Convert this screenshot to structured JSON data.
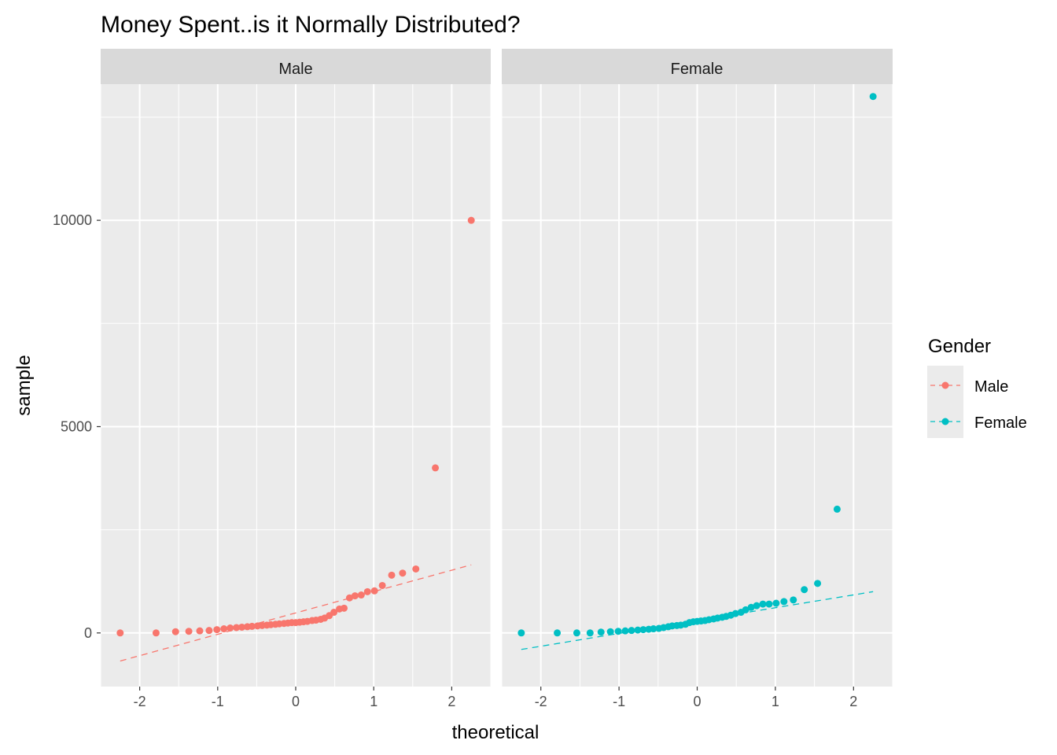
{
  "chart_data": {
    "type": "scatter",
    "title": "Money Spent..is it Normally Distributed?",
    "xlabel": "theoretical",
    "ylabel": "sample",
    "xlim": [
      -2.5,
      2.5
    ],
    "ylim": [
      -1300,
      13300
    ],
    "x_ticks": [
      -2,
      -1,
      0,
      1,
      2
    ],
    "x_tick_labels": [
      "-2",
      "-1",
      "0",
      "1",
      "2"
    ],
    "y_ticks": [
      0,
      5000,
      10000
    ],
    "y_tick_labels": [
      "0",
      "5000",
      "10000"
    ],
    "grid": true,
    "legend": {
      "title": "Gender",
      "position": "right",
      "entries": [
        {
          "label": "Male",
          "color": "#F8766D"
        },
        {
          "label": "Female",
          "color": "#00BFC4"
        }
      ]
    },
    "panels": [
      {
        "strip_label": "Male",
        "color": "#F8766D",
        "ref_line": {
          "x": [
            -2.25,
            2.25
          ],
          "y": [
            -680,
            1650
          ]
        },
        "points": {
          "x": [
            -2.25,
            -1.79,
            -1.54,
            -1.37,
            -1.23,
            -1.11,
            -1.01,
            -0.92,
            -0.84,
            -0.76,
            -0.69,
            -0.62,
            -0.56,
            -0.49,
            -0.43,
            -0.37,
            -0.32,
            -0.26,
            -0.21,
            -0.15,
            -0.1,
            -0.05,
            0.0,
            0.05,
            0.1,
            0.15,
            0.21,
            0.26,
            0.32,
            0.37,
            0.43,
            0.49,
            0.56,
            0.62,
            0.69,
            0.76,
            0.84,
            0.92,
            1.01,
            1.11,
            1.23,
            1.37,
            1.54,
            1.79,
            2.25
          ],
          "y": [
            0,
            0,
            30,
            40,
            50,
            60,
            80,
            100,
            120,
            130,
            140,
            150,
            160,
            170,
            180,
            190,
            200,
            210,
            220,
            230,
            240,
            250,
            250,
            260,
            270,
            280,
            300,
            310,
            330,
            360,
            420,
            500,
            580,
            600,
            850,
            900,
            920,
            1000,
            1020,
            1150,
            1400,
            1450,
            1550,
            4000,
            10000
          ]
        }
      },
      {
        "strip_label": "Female",
        "color": "#00BFC4",
        "ref_line": {
          "x": [
            -2.25,
            2.25
          ],
          "y": [
            -400,
            1000
          ]
        },
        "points": {
          "x": [
            -2.25,
            -1.79,
            -1.54,
            -1.37,
            -1.23,
            -1.11,
            -1.01,
            -0.92,
            -0.84,
            -0.76,
            -0.69,
            -0.62,
            -0.56,
            -0.49,
            -0.43,
            -0.37,
            -0.32,
            -0.26,
            -0.21,
            -0.15,
            -0.1,
            -0.05,
            0.0,
            0.05,
            0.1,
            0.15,
            0.21,
            0.26,
            0.32,
            0.37,
            0.43,
            0.49,
            0.56,
            0.62,
            0.69,
            0.76,
            0.84,
            0.92,
            1.01,
            1.11,
            1.23,
            1.37,
            1.54,
            1.79,
            2.25
          ],
          "y": [
            0,
            0,
            0,
            0,
            20,
            30,
            40,
            50,
            60,
            70,
            80,
            90,
            100,
            110,
            130,
            150,
            170,
            180,
            190,
            210,
            250,
            270,
            280,
            290,
            300,
            320,
            340,
            360,
            380,
            400,
            430,
            470,
            500,
            560,
            620,
            660,
            700,
            700,
            720,
            760,
            800,
            1050,
            1200,
            3000,
            13000
          ]
        }
      }
    ]
  }
}
